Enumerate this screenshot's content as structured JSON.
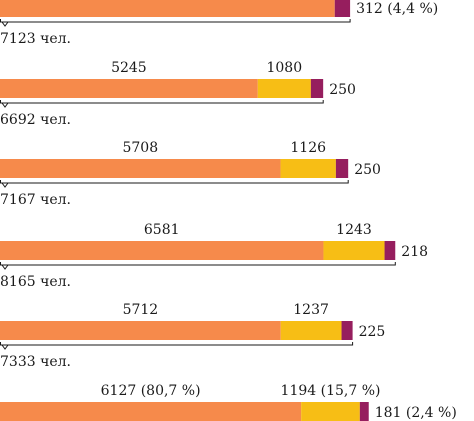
{
  "chart_data": {
    "type": "bar",
    "orientation": "horizontal",
    "stacked": true,
    "colors": {
      "segment_1": "#F68A4B",
      "segment_2": "#F7BE15",
      "segment_3": "#961E5E",
      "bracket": "#1a1a1a",
      "text": "#1a1a1a"
    },
    "rows": [
      {
        "values": [
          6811,
          0,
          312
        ],
        "labels": [
          "",
          "",
          "312 (4,4 %)"
        ],
        "total_label": "7123 чел."
      },
      {
        "values": [
          5245,
          1080,
          250
        ],
        "labels": [
          "5245",
          "1080",
          "250"
        ],
        "total_label": "6692 чел."
      },
      {
        "values": [
          5708,
          1126,
          250
        ],
        "labels": [
          "5708",
          "1126",
          "250"
        ],
        "total_label": "7167 чел."
      },
      {
        "values": [
          6581,
          1243,
          218
        ],
        "labels": [
          "6581",
          "1243",
          "218"
        ],
        "total_label": "8165 чел."
      },
      {
        "values": [
          5712,
          1237,
          225
        ],
        "labels": [
          "5712",
          "1237",
          "225"
        ],
        "total_label": "7333 чел."
      },
      {
        "values": [
          6127,
          1194,
          181
        ],
        "labels": [
          "6127 (80,7 %)",
          "1194 (15,7 %)",
          "181 (2,4 %)"
        ],
        "total_label": ""
      }
    ]
  }
}
